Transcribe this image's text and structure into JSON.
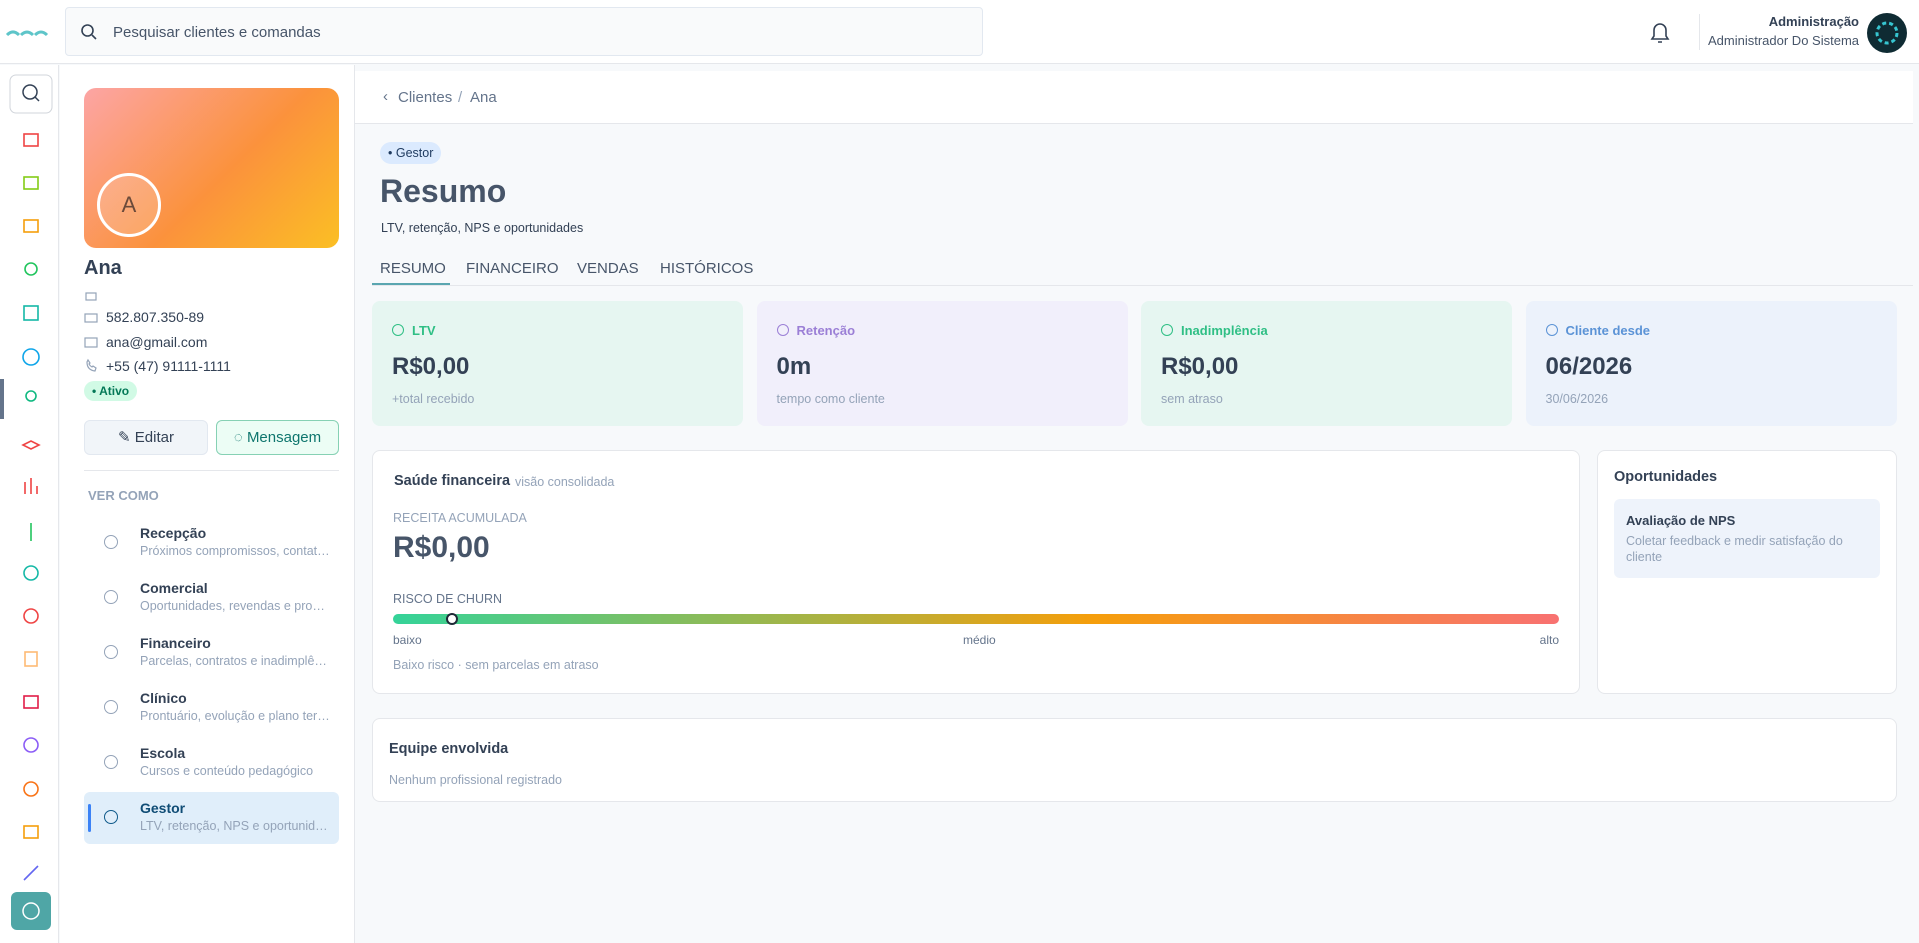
{
  "header": {
    "search_placeholder": "Pesquisar clientes e comandas",
    "user_role": "Administração",
    "user_name": "Administrador Do Sistema"
  },
  "profile": {
    "initial": "A",
    "name": "Ana",
    "document": "582.807.350-89",
    "email": "ana@gmail.com",
    "phone": "+55 (47) 91111-1111",
    "status": "• Ativo",
    "edit": "Editar",
    "message": "Mensagem"
  },
  "view_as": {
    "title": "VER COMO",
    "items": [
      {
        "title": "Recepção",
        "subtitle": "Próximos compromissos, contat…"
      },
      {
        "title": "Comercial",
        "subtitle": "Oportunidades, revendas e pro…"
      },
      {
        "title": "Financeiro",
        "subtitle": "Parcelas, contratos e inadimplê…"
      },
      {
        "title": "Clínico",
        "subtitle": "Prontuário, evolução e plano ter…"
      },
      {
        "title": "Escola",
        "subtitle": "Cursos e conteúdo pedagógico"
      },
      {
        "title": "Gestor",
        "subtitle": "LTV, retenção, NPS e oportunid…"
      }
    ]
  },
  "breadcrumb": {
    "parent": "Clientes",
    "current": "Ana"
  },
  "page": {
    "badge": "• Gestor",
    "title": "Resumo",
    "subtitle": "LTV, retenção, NPS e oportunidades"
  },
  "tabs": [
    "RESUMO",
    "FINANCEIRO",
    "VENDAS",
    "HISTÓRICOS"
  ],
  "kpis": [
    {
      "label": "LTV",
      "value": "R$0,00",
      "note": "+total recebido"
    },
    {
      "label": "Retenção",
      "value": "0m",
      "note": "tempo como cliente"
    },
    {
      "label": "Inadimplência",
      "value": "R$0,00",
      "note": "sem atraso"
    },
    {
      "label": "Cliente desde",
      "value": "06/2026",
      "note": "30/06/2026"
    }
  ],
  "financial_health": {
    "title": "Saúde financeira",
    "subtitle": "visão consolidada",
    "revenue_label": "RECEITA ACUMULADA",
    "revenue": "R$0,00",
    "churn_label": "RISCO DE CHURN",
    "scale": [
      "baixo",
      "médio",
      "alto"
    ],
    "note": "Baixo risco · sem parcelas em atraso"
  },
  "opportunities": {
    "title": "Oportunidades",
    "items": [
      {
        "title": "Avaliação de NPS",
        "description": "Coletar feedback e medir satisfação do cliente"
      }
    ]
  },
  "team": {
    "title": "Equipe envolvida",
    "empty": "Nenhum profissional registrado"
  }
}
